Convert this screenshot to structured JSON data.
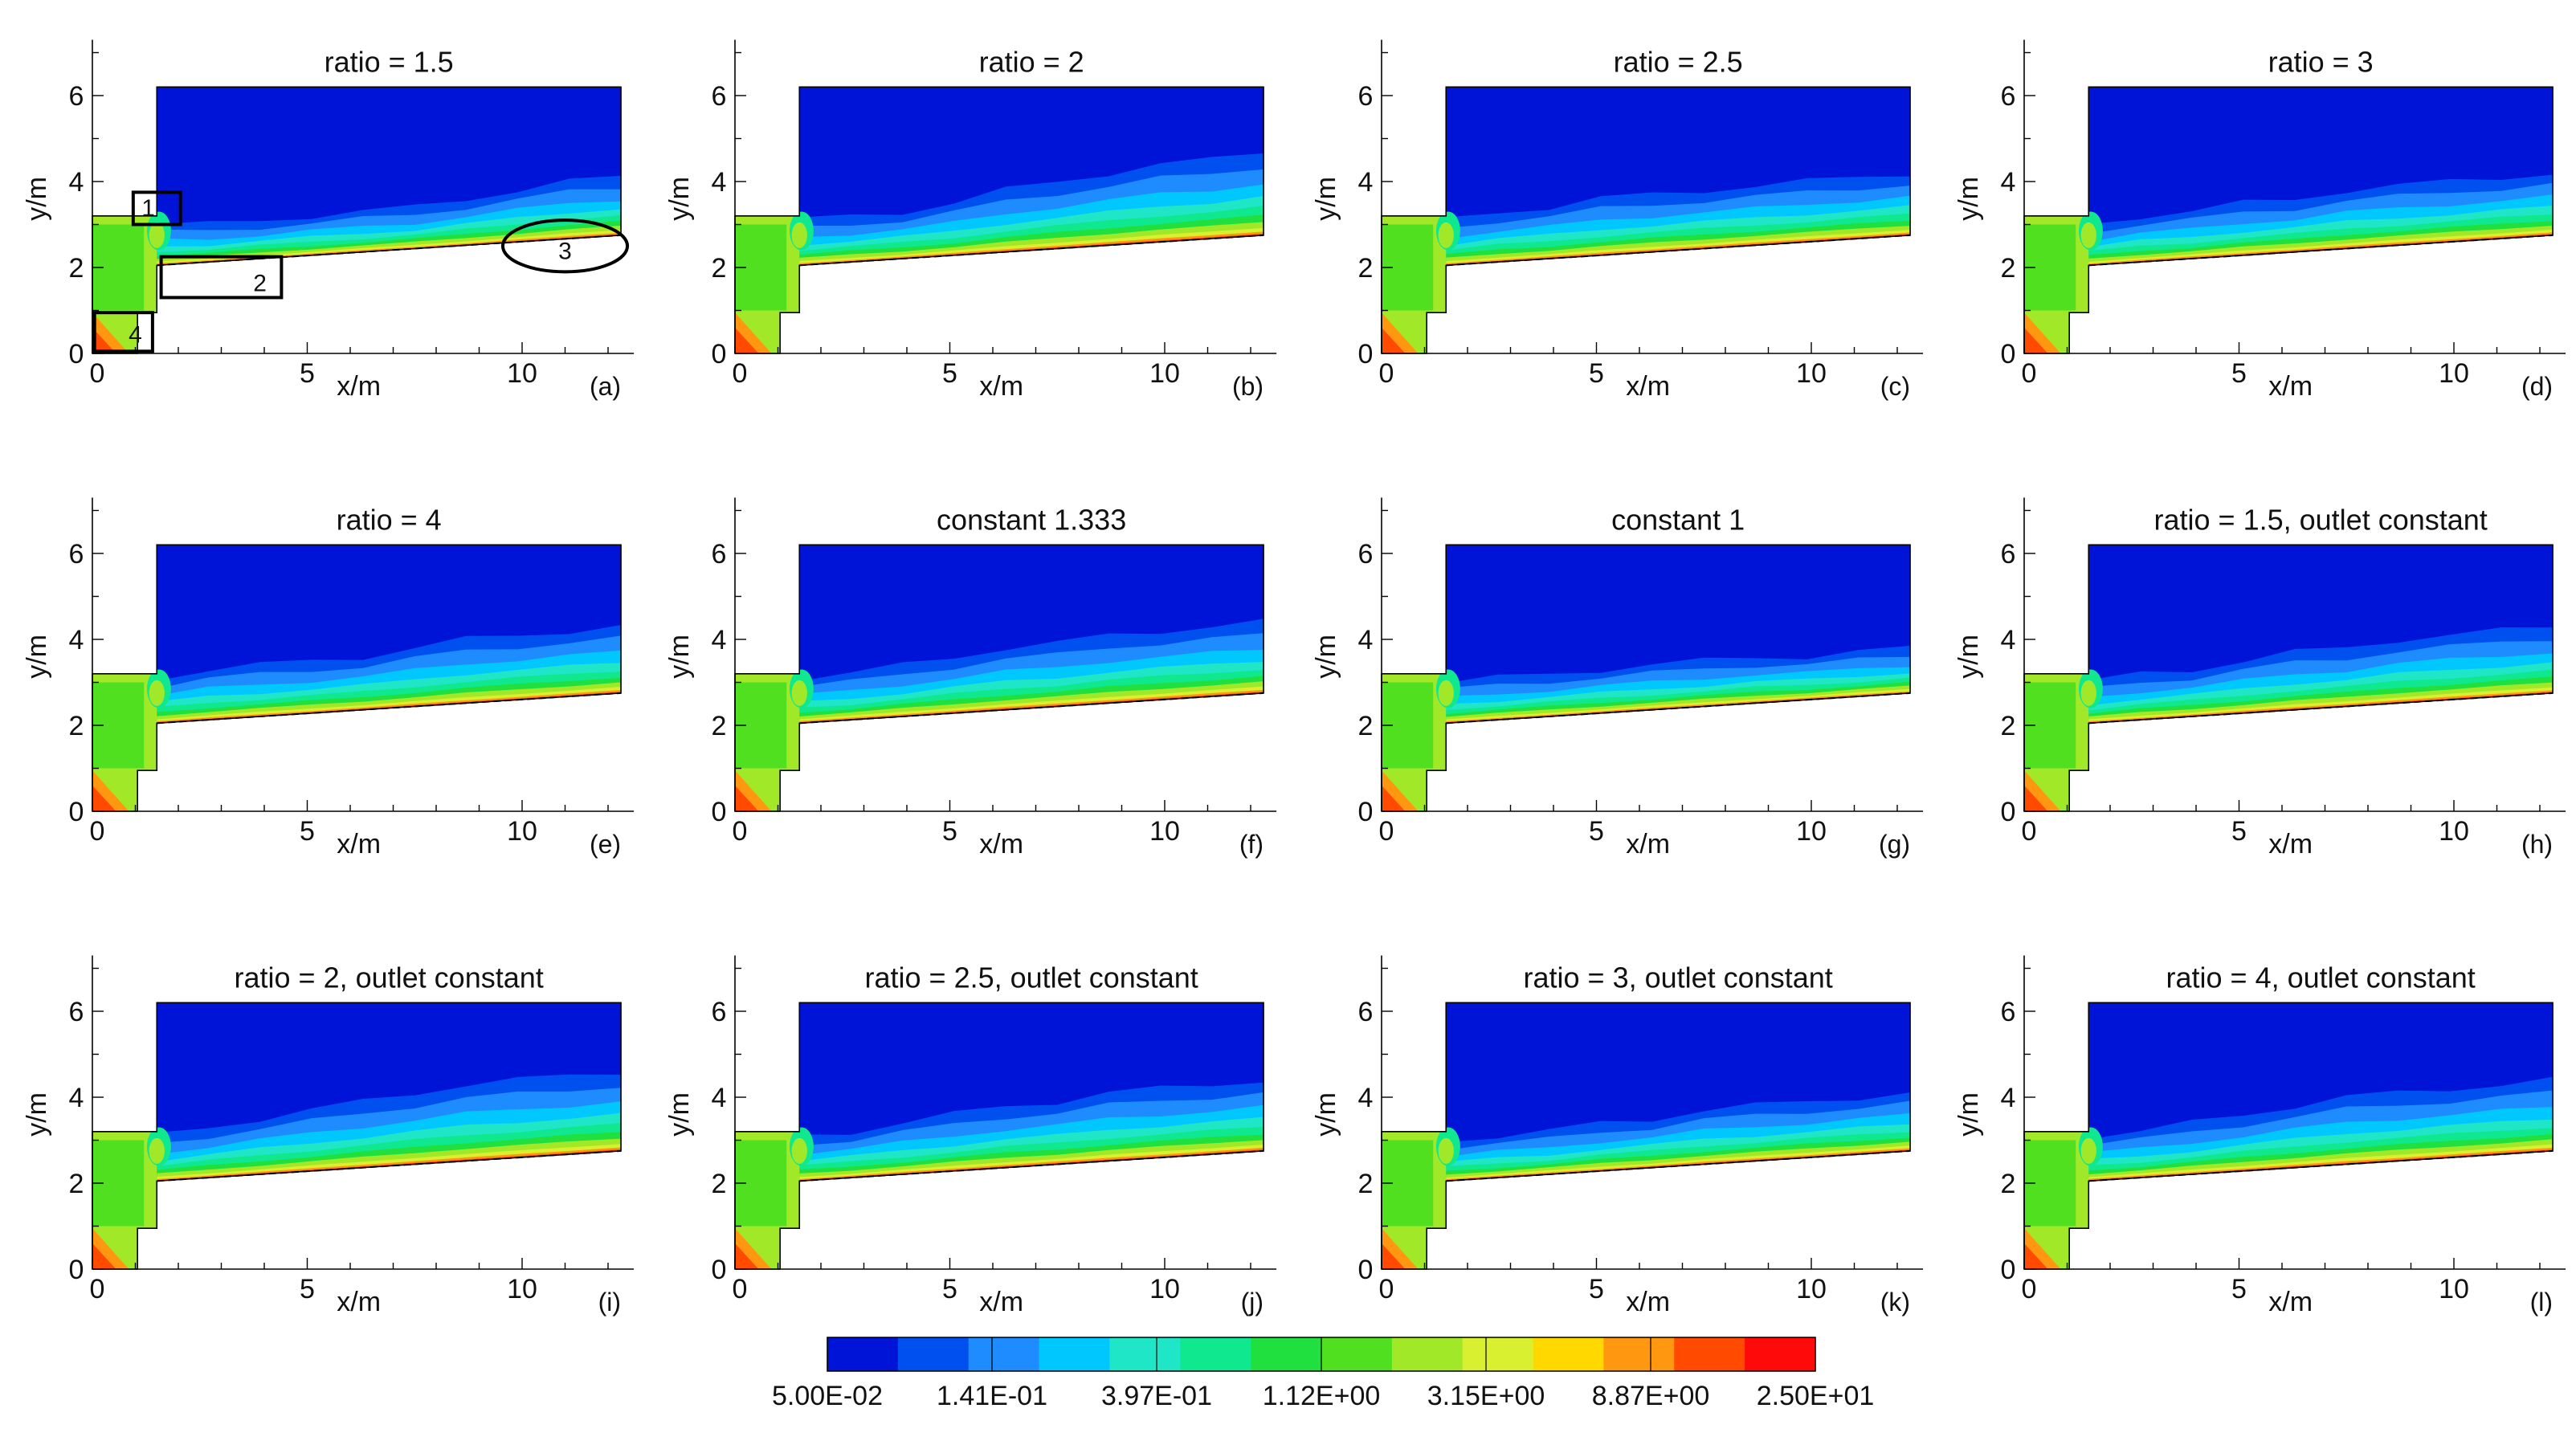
{
  "chart_data": {
    "type": "heatmap",
    "description_units": {
      "x": "x/m",
      "y": "y/m"
    },
    "xlim": [
      0,
      12.5
    ],
    "ylim": [
      0,
      7.2
    ],
    "x_ticks": [
      0,
      5,
      10
    ],
    "y_ticks": [
      0,
      2,
      4,
      6
    ],
    "xlabel": "x/m",
    "ylabel": "y/m",
    "panels": [
      {
        "label": "(a)",
        "title": "ratio = 1.5",
        "mixing_top": [
          3.0,
          3.0,
          3.1,
          3.2,
          3.3,
          3.4,
          3.6,
          3.8,
          4.0,
          4.1
        ]
      },
      {
        "label": "(b)",
        "title": "ratio = 2",
        "mixing_top": [
          3.1,
          3.2,
          3.3,
          3.5,
          3.8,
          4.0,
          4.2,
          4.4,
          4.5,
          4.7
        ]
      },
      {
        "label": "(c)",
        "title": "ratio = 2.5",
        "mixing_top": [
          3.1,
          3.3,
          3.4,
          3.6,
          3.7,
          3.8,
          3.9,
          4.0,
          4.1,
          4.2
        ]
      },
      {
        "label": "(d)",
        "title": "ratio = 3",
        "mixing_top": [
          3.0,
          3.2,
          3.3,
          3.5,
          3.6,
          3.8,
          3.9,
          4.0,
          4.1,
          4.2
        ]
      },
      {
        "label": "(e)",
        "title": "ratio = 4",
        "mixing_top": [
          3.1,
          3.3,
          3.4,
          3.5,
          3.6,
          3.8,
          4.0,
          4.1,
          4.2,
          4.3
        ]
      },
      {
        "label": "(f)",
        "title": "constant 1.333",
        "mixing_top": [
          3.1,
          3.2,
          3.4,
          3.6,
          3.8,
          3.9,
          4.1,
          4.2,
          4.3,
          4.4
        ]
      },
      {
        "label": "(g)",
        "title": "constant 1",
        "mixing_top": [
          3.0,
          3.1,
          3.2,
          3.3,
          3.4,
          3.5,
          3.6,
          3.6,
          3.7,
          3.8
        ]
      },
      {
        "label": "(h)",
        "title": "ratio = 1.5, outlet constant",
        "mixing_top": [
          3.0,
          3.2,
          3.3,
          3.5,
          3.7,
          3.8,
          4.0,
          4.1,
          4.2,
          4.3
        ]
      },
      {
        "label": "(i)",
        "title": "ratio = 2, outlet constant",
        "mixing_top": [
          3.1,
          3.3,
          3.5,
          3.7,
          3.9,
          4.1,
          4.3,
          4.4,
          4.5,
          4.6
        ]
      },
      {
        "label": "(j)",
        "title": "ratio = 2.5, outlet constant",
        "mixing_top": [
          3.1,
          3.2,
          3.4,
          3.6,
          3.8,
          3.9,
          4.1,
          4.2,
          4.3,
          4.4
        ]
      },
      {
        "label": "(k)",
        "title": "ratio = 3, outlet constant",
        "mixing_top": [
          3.0,
          3.1,
          3.2,
          3.4,
          3.5,
          3.7,
          3.8,
          3.9,
          4.0,
          4.1
        ]
      },
      {
        "label": "(l)",
        "title": "ratio = 4, outlet constant",
        "mixing_top": [
          3.1,
          3.2,
          3.4,
          3.6,
          3.8,
          4.0,
          4.1,
          4.2,
          4.3,
          4.4
        ]
      }
    ],
    "annotations": [
      {
        "panel": "(a)",
        "text": "1",
        "shape": "box",
        "target": "inlet step corner"
      },
      {
        "panel": "(a)",
        "text": "2",
        "shape": "box",
        "target": "near-wall region"
      },
      {
        "panel": "(a)",
        "text": "3",
        "shape": "ellipse",
        "target": "outlet region"
      },
      {
        "panel": "(a)",
        "text": "4",
        "shape": "box",
        "target": "bottom inlet corner"
      }
    ],
    "colorbar": {
      "scale": "log",
      "tick_labels": [
        "5.00E-02",
        "1.41E-01",
        "3.97E-01",
        "1.12E+00",
        "3.15E+00",
        "8.87E+00",
        "2.50E+01"
      ],
      "colors": [
        "#0014d8",
        "#0050f0",
        "#1e8cff",
        "#00c8ff",
        "#20e6c8",
        "#10e890",
        "#20e040",
        "#50e020",
        "#a0e828",
        "#d8f030",
        "#ffd800",
        "#ff9810",
        "#ff4a00",
        "#ff0a0a"
      ]
    }
  }
}
